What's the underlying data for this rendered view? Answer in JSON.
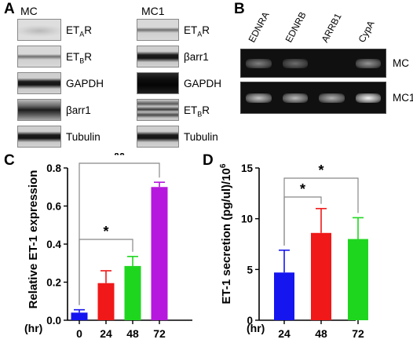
{
  "panel_a": {
    "letter": "A",
    "left_group": {
      "title": "MC",
      "strips": [
        {
          "label_main": "ET",
          "label_sub": "A",
          "label_rest": "R",
          "band": "faint"
        },
        {
          "label_main": "ET",
          "label_sub": "B",
          "label_rest": "R",
          "band": "medium"
        },
        {
          "label_main": "GAPDH",
          "label_sub": "",
          "label_rest": "",
          "band": "strong"
        },
        {
          "label_main": "βarr1",
          "label_sub": "",
          "label_rest": "",
          "band": "strong-soft"
        },
        {
          "label_main": "Tubulin",
          "label_sub": "",
          "label_rest": "",
          "band": "strong"
        }
      ]
    },
    "right_group": {
      "title": "MC1",
      "strips": [
        {
          "label_main": "ET",
          "label_sub": "A",
          "label_rest": "R",
          "band": "medium"
        },
        {
          "label_main": "βarr1",
          "label_sub": "",
          "label_rest": "",
          "band": "strong"
        },
        {
          "label_main": "GAPDH",
          "label_sub": "",
          "label_rest": "",
          "band": "saturated"
        },
        {
          "label_main": "ET",
          "label_sub": "B",
          "label_rest": "R",
          "band": "multi"
        },
        {
          "label_main": "Tubulin",
          "label_sub": "",
          "label_rest": "",
          "band": "strong"
        }
      ]
    }
  },
  "panel_b": {
    "letter": "B",
    "lanes": [
      "EDNRA",
      "EDNRB",
      "ARRB1",
      "CypA"
    ],
    "rows": [
      {
        "label": "MC",
        "intensities": [
          0.35,
          0.25,
          0.0,
          0.45
        ]
      },
      {
        "label": "MC1",
        "intensities": [
          0.7,
          0.65,
          0.6,
          0.95
        ]
      }
    ]
  },
  "panel_c": {
    "letter": "C",
    "chart_data": {
      "type": "bar",
      "ylabel": "Relative ET-1 expression",
      "x_unit": "(hr)",
      "categories": [
        "0",
        "24",
        "48",
        "72"
      ],
      "values": [
        0.04,
        0.195,
        0.285,
        0.7
      ],
      "errors": [
        0.015,
        0.065,
        0.05,
        0.025
      ],
      "colors": [
        "#1515f0",
        "#f01818",
        "#1fd61f",
        "#b619dd"
      ],
      "ylim": [
        0,
        0.8
      ],
      "yticks": [
        "0.0",
        "0.2",
        "0.4",
        "0.6",
        "0.8"
      ],
      "brackets": [
        {
          "from": 0,
          "to": 2,
          "label": "*"
        },
        {
          "from": 0,
          "to": 3,
          "label": "**"
        }
      ]
    }
  },
  "panel_d": {
    "letter": "D",
    "chart_data": {
      "type": "bar",
      "ylabel": "ET-1 secretion (pg/ul)/10",
      "ylabel_sup": "6",
      "x_unit": "(hr)",
      "categories": [
        "24",
        "48",
        "72"
      ],
      "values": [
        4.7,
        8.6,
        8.0
      ],
      "errors": [
        2.2,
        2.4,
        2.1
      ],
      "colors": [
        "#1515f0",
        "#f01818",
        "#1fd61f"
      ],
      "ylim": [
        0,
        15
      ],
      "yticks": [
        "0",
        "5",
        "10",
        "15"
      ],
      "brackets": [
        {
          "from": 0,
          "to": 1,
          "label": "*"
        },
        {
          "from": 0,
          "to": 2,
          "label": "*"
        }
      ]
    }
  }
}
